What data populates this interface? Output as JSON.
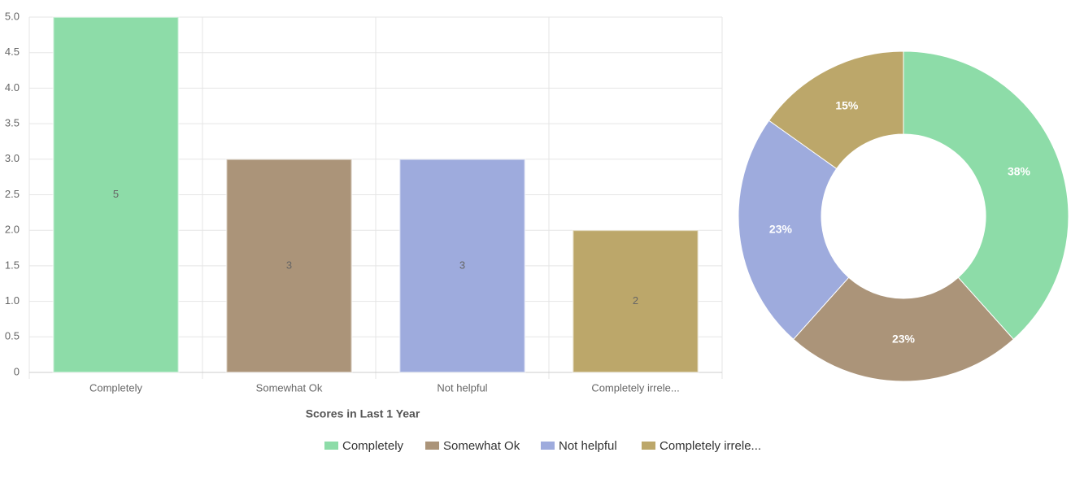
{
  "chart_data": [
    {
      "type": "bar",
      "x_label": "Scores in Last 1 Year",
      "categories": [
        "Completely",
        "Somewhat Ok",
        "Not helpful",
        "Completely irrele..."
      ],
      "values": [
        5,
        3,
        3,
        2
      ],
      "colors": [
        "#8ddca8",
        "#ab9479",
        "#9eabdd",
        "#bca76a"
      ],
      "ylim": [
        0,
        5
      ],
      "yticks": [
        0,
        {
          "value": 0.5,
          "label": "0.5"
        },
        {
          "value": 1,
          "label": "1.0"
        },
        {
          "value": 1.5,
          "label": "1.5"
        },
        {
          "value": 2,
          "label": "2.0"
        },
        {
          "value": 2.5,
          "label": "2.5"
        },
        {
          "value": 3,
          "label": "3.0"
        },
        {
          "value": 3.5,
          "label": "3.5"
        },
        {
          "value": 4,
          "label": "4.0"
        },
        {
          "value": 4.5,
          "label": "4.5"
        },
        {
          "value": 5,
          "label": "5.0"
        }
      ],
      "grid": true
    },
    {
      "type": "doughnut",
      "categories": [
        "Completely",
        "Somewhat Ok",
        "Not helpful",
        "Completely irrele..."
      ],
      "values": [
        38,
        23,
        23,
        15
      ],
      "value_labels": [
        "38%",
        "23%",
        "23%",
        "15%"
      ],
      "colors": [
        "#8ddca8",
        "#ab9479",
        "#9eabdd",
        "#bca76a"
      ],
      "legend": "bottom"
    }
  ]
}
